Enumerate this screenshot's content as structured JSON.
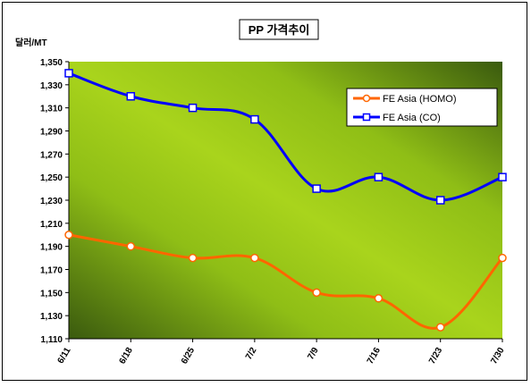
{
  "chart_data": {
    "type": "line",
    "title": "PP 가격추이",
    "ylabel": "달러/MT",
    "xlabel": "",
    "categories": [
      "6/11",
      "6/18",
      "6/25",
      "7/2",
      "7/9",
      "7/16",
      "7/23",
      "7/30"
    ],
    "ylim": [
      1110,
      1350
    ],
    "yticks": [
      1110,
      1130,
      1150,
      1170,
      1190,
      1210,
      1230,
      1250,
      1270,
      1290,
      1310,
      1330,
      1350
    ],
    "ytick_labels": [
      "1,110",
      "1,130",
      "1,150",
      "1,170",
      "1,190",
      "1,210",
      "1,230",
      "1,250",
      "1,270",
      "1,290",
      "1,310",
      "1,330",
      "1,350"
    ],
    "grid": false,
    "legend_position": "top-right",
    "series": [
      {
        "name": "FE Asia (HOMO)",
        "color": "#ff6600",
        "marker": "circle",
        "values": [
          1200,
          1190,
          1180,
          1180,
          1150,
          1145,
          1120,
          1180
        ]
      },
      {
        "name": "FE Asia (CO)",
        "color": "#0000ff",
        "marker": "square",
        "values": [
          1340,
          1320,
          1310,
          1300,
          1240,
          1250,
          1230,
          1250
        ]
      }
    ]
  }
}
